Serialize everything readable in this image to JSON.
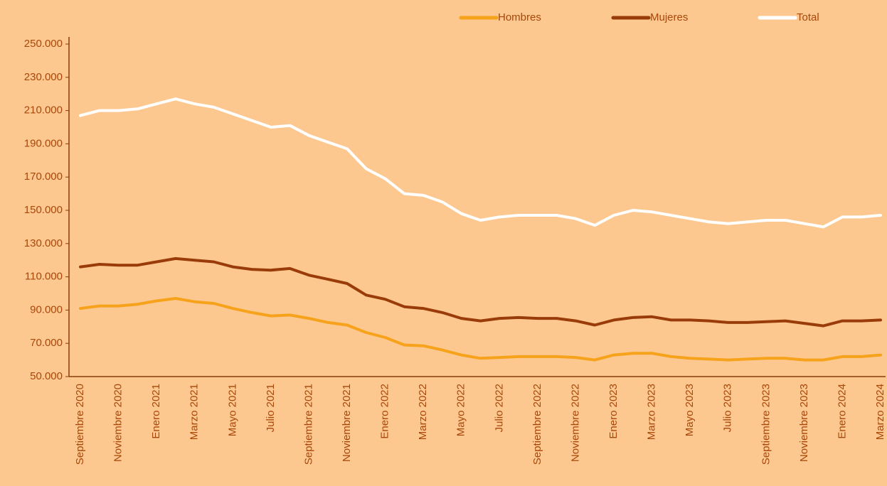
{
  "chart_data": {
    "type": "line",
    "categories": [
      "Septiembre 2020",
      null,
      "Noviembre 2020",
      null,
      "Enero 2021",
      null,
      "Marzo 2021",
      null,
      "Mayo 2021",
      null,
      "Julio 2021",
      null,
      "Septiembre 2021",
      null,
      "Noviembre 2021",
      null,
      "Enero 2022",
      null,
      "Marzo 2022",
      null,
      "Mayo 2022",
      null,
      "Julio 2022",
      null,
      "Septiembre 2022",
      null,
      "Noviembre 2022",
      null,
      "Enero 2023",
      null,
      "Marzo 2023",
      null,
      "Mayo 2023",
      null,
      "Julio 2023",
      null,
      "Septiembre 2023",
      null,
      "Noviembre 2023",
      null,
      "Enero 2024",
      null,
      "Marzo 2024"
    ],
    "series": [
      {
        "name": "Hombres",
        "color": "#f6a21a",
        "values": [
          91000,
          92500,
          92500,
          93500,
          95500,
          97000,
          95000,
          94000,
          91000,
          88500,
          86500,
          87000,
          85000,
          82500,
          81000,
          76500,
          73500,
          69000,
          68500,
          66000,
          63000,
          61000,
          61500,
          62000,
          62000,
          62000,
          61500,
          60000,
          63000,
          64000,
          64000,
          62000,
          61000,
          60500,
          60000,
          60500,
          61000,
          61000,
          60000,
          60000,
          62000,
          62000,
          63000
        ]
      },
      {
        "name": "Mujeres",
        "color": "#9a3c0a",
        "values": [
          116000,
          117500,
          117000,
          117000,
          119000,
          121000,
          120000,
          119000,
          116000,
          114500,
          114000,
          115000,
          111000,
          108500,
          106000,
          99000,
          96500,
          92000,
          91000,
          88500,
          85000,
          83500,
          85000,
          85500,
          85000,
          85000,
          83500,
          81000,
          84000,
          85500,
          86000,
          84000,
          84000,
          83500,
          82500,
          82500,
          83000,
          83500,
          82000,
          80500,
          83500,
          83500,
          84000
        ]
      },
      {
        "name": "Total",
        "color": "#ffffff",
        "values": [
          207000,
          210000,
          210000,
          211000,
          214000,
          217000,
          214000,
          212000,
          208000,
          204000,
          200000,
          201000,
          195000,
          191000,
          187000,
          175000,
          169000,
          160000,
          159000,
          155000,
          148000,
          144000,
          146000,
          147000,
          147000,
          147000,
          145000,
          141000,
          147000,
          150000,
          149000,
          147000,
          145000,
          143000,
          142000,
          143000,
          144000,
          144000,
          142000,
          140000,
          146000,
          146000,
          147000
        ]
      }
    ],
    "ylim": [
      50000,
      250000
    ],
    "yticks": [
      {
        "value": 50000,
        "label": "50.000"
      },
      {
        "value": 70000,
        "label": "70.000"
      },
      {
        "value": 90000,
        "label": "90.000"
      },
      {
        "value": 110000,
        "label": "110.000"
      },
      {
        "value": 130000,
        "label": "130.000"
      },
      {
        "value": 150000,
        "label": "150.000"
      },
      {
        "value": 170000,
        "label": "170.000"
      },
      {
        "value": 190000,
        "label": "190.000"
      },
      {
        "value": 210000,
        "label": "210.000"
      },
      {
        "value": 230000,
        "label": "230.000"
      },
      {
        "value": 250000,
        "label": "250.000"
      }
    ],
    "grid": false,
    "legend": "top-right"
  }
}
